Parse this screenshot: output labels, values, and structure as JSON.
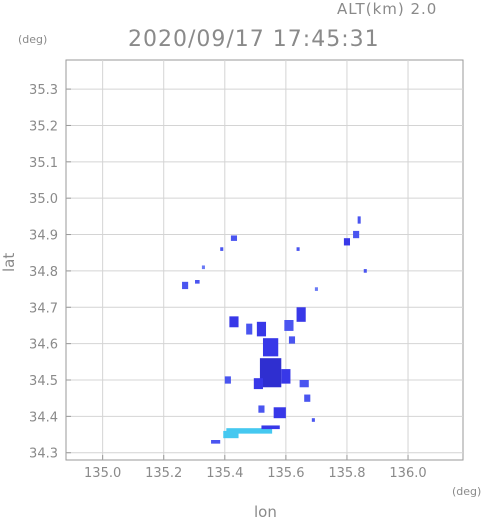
{
  "header": {
    "altitude_label": "ALT(km) 2.0",
    "datetime": "2020/09/17 17:45:31"
  },
  "axes": {
    "y_unit": "(deg)",
    "x_unit": "(deg)",
    "xlabel": "lon",
    "ylabel": "lat"
  },
  "chart_data": {
    "type": "heatmap",
    "xlim": [
      134.88,
      136.18
    ],
    "ylim": [
      34.28,
      35.38
    ],
    "x_ticks": [
      135.0,
      135.2,
      135.4,
      135.6,
      135.8,
      136.0
    ],
    "x_tick_labels": [
      "135.0",
      "135.2",
      "135.4",
      "135.6",
      "135.8",
      "136.0"
    ],
    "y_ticks": [
      34.3,
      34.4,
      34.5,
      34.6,
      34.7,
      34.8,
      34.9,
      35.0,
      35.1,
      35.2,
      35.3
    ],
    "y_tick_labels": [
      "34.3",
      "34.4",
      "34.5",
      "34.6",
      "34.7",
      "34.8",
      "34.9",
      "35.0",
      "35.1",
      "35.2",
      "35.3"
    ],
    "colors": {
      "weak": "#4a55f0",
      "moderate": "#3838e8",
      "strong": "#2f2fd0",
      "light": "#45c8f0",
      "edge": "#6a7af5"
    },
    "echoes": [
      {
        "lon": 135.84,
        "lat": 34.94,
        "w": 0.01,
        "h": 0.02,
        "level": "weak"
      },
      {
        "lon": 135.83,
        "lat": 34.9,
        "w": 0.02,
        "h": 0.02,
        "level": "weak"
      },
      {
        "lon": 135.8,
        "lat": 34.88,
        "w": 0.02,
        "h": 0.02,
        "level": "moderate"
      },
      {
        "lon": 135.86,
        "lat": 34.8,
        "w": 0.01,
        "h": 0.01,
        "level": "weak"
      },
      {
        "lon": 135.43,
        "lat": 34.89,
        "w": 0.02,
        "h": 0.015,
        "level": "weak"
      },
      {
        "lon": 135.39,
        "lat": 34.86,
        "w": 0.01,
        "h": 0.01,
        "level": "weak"
      },
      {
        "lon": 135.27,
        "lat": 34.76,
        "w": 0.02,
        "h": 0.02,
        "level": "weak"
      },
      {
        "lon": 135.31,
        "lat": 34.77,
        "w": 0.015,
        "h": 0.01,
        "level": "weak"
      },
      {
        "lon": 135.33,
        "lat": 34.81,
        "w": 0.01,
        "h": 0.01,
        "level": "edge"
      },
      {
        "lon": 135.64,
        "lat": 34.86,
        "w": 0.01,
        "h": 0.01,
        "level": "weak"
      },
      {
        "lon": 135.7,
        "lat": 34.75,
        "w": 0.01,
        "h": 0.01,
        "level": "edge"
      },
      {
        "lon": 135.43,
        "lat": 34.66,
        "w": 0.03,
        "h": 0.03,
        "level": "moderate"
      },
      {
        "lon": 135.48,
        "lat": 34.64,
        "w": 0.02,
        "h": 0.03,
        "level": "weak"
      },
      {
        "lon": 135.52,
        "lat": 34.64,
        "w": 0.03,
        "h": 0.04,
        "level": "moderate"
      },
      {
        "lon": 135.55,
        "lat": 34.59,
        "w": 0.05,
        "h": 0.05,
        "level": "moderate"
      },
      {
        "lon": 135.61,
        "lat": 34.65,
        "w": 0.03,
        "h": 0.03,
        "level": "weak"
      },
      {
        "lon": 135.65,
        "lat": 34.68,
        "w": 0.03,
        "h": 0.04,
        "level": "moderate"
      },
      {
        "lon": 135.62,
        "lat": 34.61,
        "w": 0.02,
        "h": 0.02,
        "level": "weak"
      },
      {
        "lon": 135.55,
        "lat": 34.52,
        "w": 0.07,
        "h": 0.08,
        "level": "strong"
      },
      {
        "lon": 135.6,
        "lat": 34.51,
        "w": 0.03,
        "h": 0.04,
        "level": "moderate"
      },
      {
        "lon": 135.51,
        "lat": 34.49,
        "w": 0.03,
        "h": 0.03,
        "level": "moderate"
      },
      {
        "lon": 135.66,
        "lat": 34.49,
        "w": 0.03,
        "h": 0.02,
        "level": "weak"
      },
      {
        "lon": 135.67,
        "lat": 34.45,
        "w": 0.02,
        "h": 0.02,
        "level": "weak"
      },
      {
        "lon": 135.41,
        "lat": 34.5,
        "w": 0.02,
        "h": 0.02,
        "level": "weak"
      },
      {
        "lon": 135.58,
        "lat": 34.41,
        "w": 0.04,
        "h": 0.03,
        "level": "moderate"
      },
      {
        "lon": 135.52,
        "lat": 34.42,
        "w": 0.02,
        "h": 0.02,
        "level": "weak"
      },
      {
        "lon": 135.69,
        "lat": 34.39,
        "w": 0.01,
        "h": 0.01,
        "level": "weak"
      },
      {
        "lon": 135.48,
        "lat": 34.36,
        "w": 0.15,
        "h": 0.015,
        "level": "light"
      },
      {
        "lon": 135.42,
        "lat": 34.35,
        "w": 0.05,
        "h": 0.02,
        "level": "light"
      },
      {
        "lon": 135.37,
        "lat": 34.33,
        "w": 0.03,
        "h": 0.01,
        "level": "weak"
      },
      {
        "lon": 135.55,
        "lat": 34.37,
        "w": 0.06,
        "h": 0.01,
        "level": "moderate"
      }
    ]
  }
}
